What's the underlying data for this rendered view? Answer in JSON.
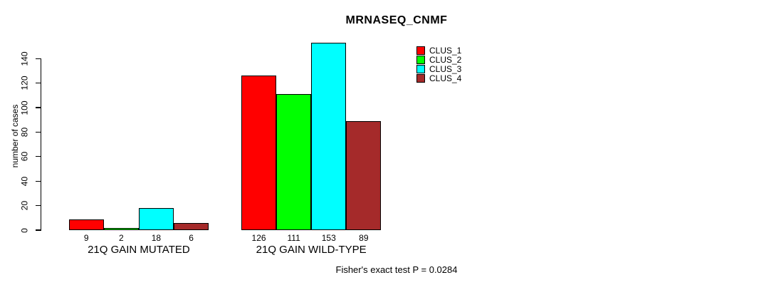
{
  "figure": {
    "background_color": "#FFFFFF",
    "text_color": "#000000"
  },
  "chart_data": {
    "type": "bar",
    "title": "MRNASEQ_CNMF",
    "ylabel": "number of cases",
    "xlabel": "",
    "ylim": [
      0,
      155
    ],
    "yticks": [
      0,
      20,
      40,
      60,
      80,
      100,
      120,
      140
    ],
    "grid": false,
    "categories": [
      "21Q GAIN MUTATED",
      "21Q GAIN WILD-TYPE"
    ],
    "series": [
      {
        "name": "CLUS_1",
        "color": "#FF0000",
        "values": [
          9,
          126
        ]
      },
      {
        "name": "CLUS_2",
        "color": "#00FF00",
        "values": [
          2,
          111
        ]
      },
      {
        "name": "CLUS_3",
        "color": "#00FFFF",
        "values": [
          18,
          153
        ]
      },
      {
        "name": "CLUS_4",
        "color": "#A52A2A",
        "values": [
          6,
          89
        ]
      }
    ],
    "bar_value_labels_shown": true,
    "legend": {
      "position": "top-right"
    },
    "annotation": "Fisher's exact test P = 0.0284"
  }
}
